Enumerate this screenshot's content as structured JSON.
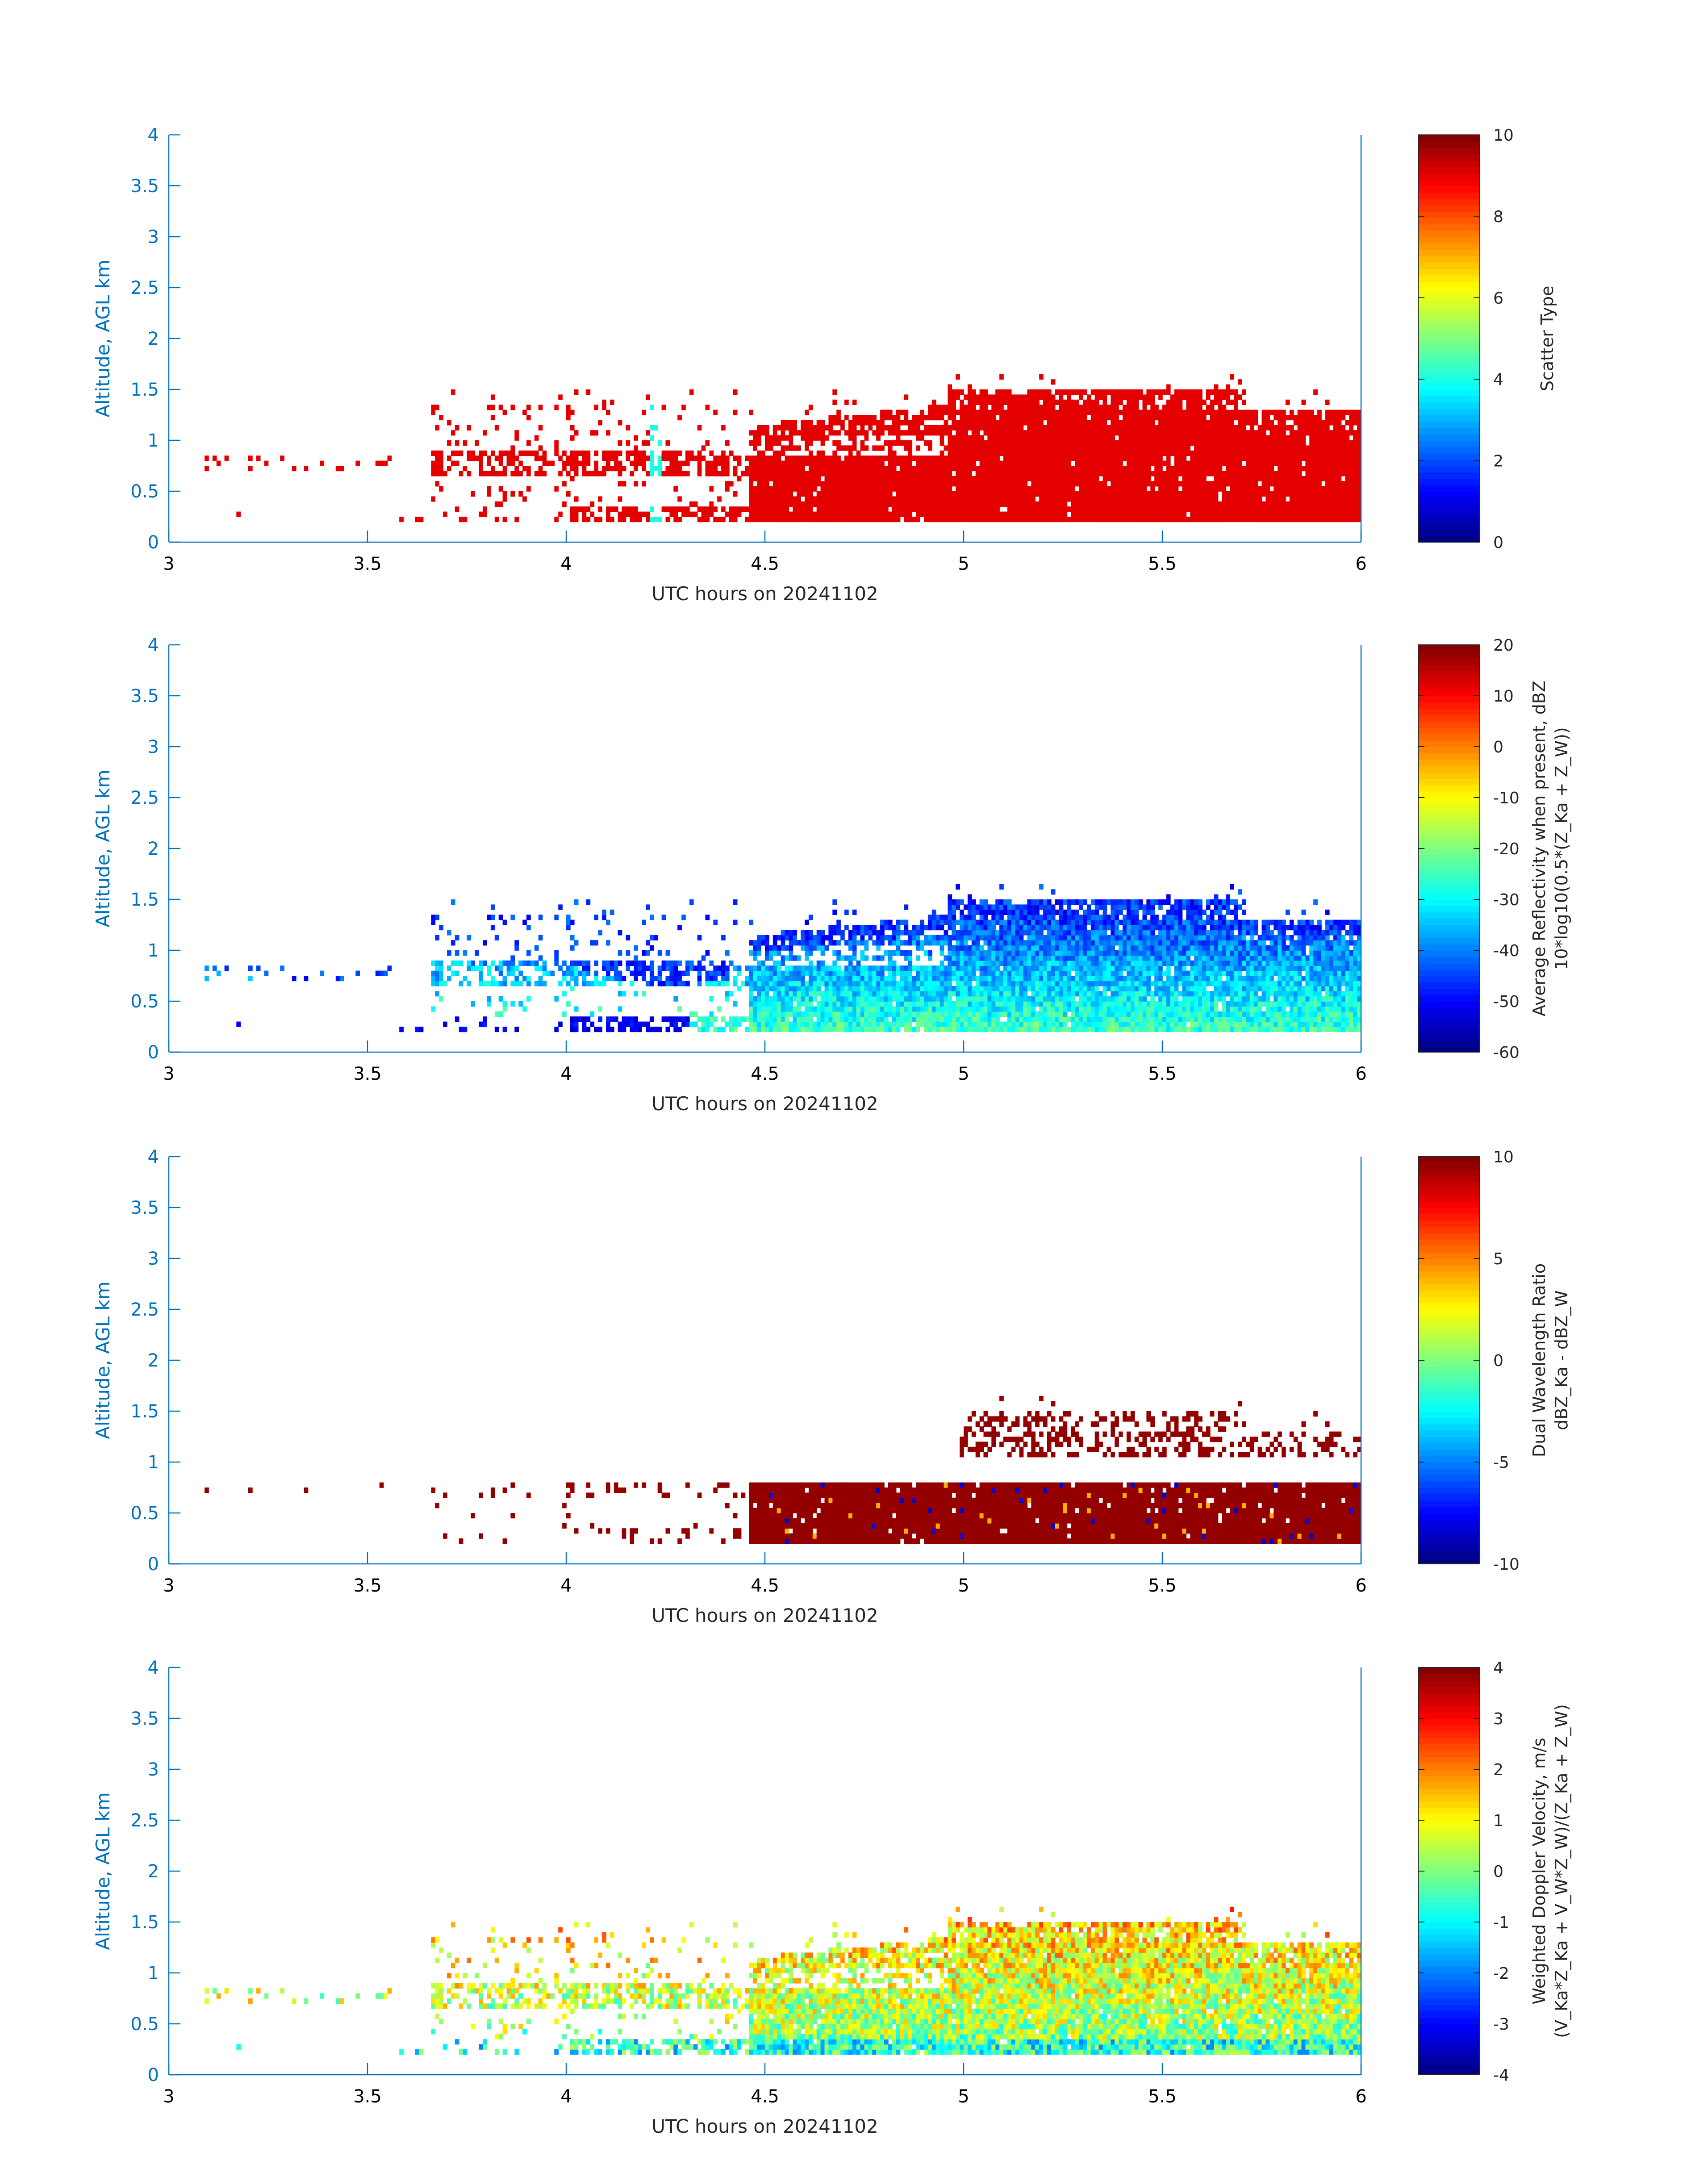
{
  "panels": [
    {
      "id": "scatter-type",
      "colorbar_label": "Scatter Type",
      "colorbar_sublabel": "",
      "clim": [
        0,
        10
      ],
      "colorbar_ticks": [
        "0",
        "2",
        "4",
        "6",
        "8",
        "10"
      ]
    },
    {
      "id": "reflectivity",
      "colorbar_label": "Average Reflectivity when present, dBZ",
      "colorbar_sublabel": "10*log10(0.5*(Z_Ka + Z_W))",
      "clim": [
        -60,
        20
      ],
      "colorbar_ticks": [
        "-60",
        "-50",
        "-40",
        "-30",
        "-20",
        "-10",
        "0",
        "10",
        "20"
      ]
    },
    {
      "id": "dwr",
      "colorbar_label": "Dual Wavelength Ratio",
      "colorbar_sublabel": "dBZ_Ka - dBZ_W",
      "clim": [
        -10,
        10
      ],
      "colorbar_ticks": [
        "-10",
        "-5",
        "0",
        "5",
        "10"
      ]
    },
    {
      "id": "doppler",
      "colorbar_label": "Weighted Doppler Velocity, m/s",
      "colorbar_sublabel": "(V_Ka*Z_Ka + V_W*Z_W)/(Z_Ka + Z_W)",
      "clim": [
        -4,
        4
      ],
      "colorbar_ticks": [
        "-4",
        "-3",
        "-2",
        "-1",
        "0",
        "1",
        "2",
        "3",
        "4"
      ]
    }
  ],
  "chart_data": {
    "type": "heatmap",
    "xlabel": "UTC hours on 20241102",
    "ylabel": "Altitude, AGL km",
    "xlim": [
      3,
      6
    ],
    "ylim": [
      0,
      4
    ],
    "xticks": [
      "3",
      "3.5",
      "4",
      "4.5",
      "5",
      "5.5",
      "6"
    ],
    "yticks": [
      "0",
      "0.5",
      "1",
      "1.5",
      "2",
      "2.5",
      "3",
      "3.5",
      "4"
    ],
    "colormap": "jet",
    "panels_summary": [
      {
        "field": "Scatter Type",
        "value_range": [
          0,
          10
        ],
        "dominant_value": 9,
        "echo_x_range": [
          3.13,
          6.0
        ],
        "echo_altitude_range_km": [
          0.2,
          1.6
        ]
      },
      {
        "field": "Average Reflectivity when present, dBZ",
        "value_range": [
          -60,
          20
        ],
        "typical_values": [
          -45,
          -20
        ],
        "echo_x_range": [
          3.03,
          6.0
        ],
        "echo_altitude_range_km": [
          0.2,
          1.6
        ]
      },
      {
        "field": "Dual Wavelength Ratio",
        "value_range": [
          -10,
          10
        ],
        "dominant_value": 10,
        "echo_x_range": [
          3.65,
          6.0
        ],
        "echo_altitude_range_km": [
          0.25,
          1.5
        ]
      },
      {
        "field": "Weighted Doppler Velocity, m/s",
        "value_range": [
          -4,
          4
        ],
        "typical_values": [
          -2,
          1.5
        ],
        "echo_x_range": [
          3.03,
          6.0
        ],
        "echo_altitude_range_km": [
          0.2,
          1.6
        ]
      }
    ]
  }
}
